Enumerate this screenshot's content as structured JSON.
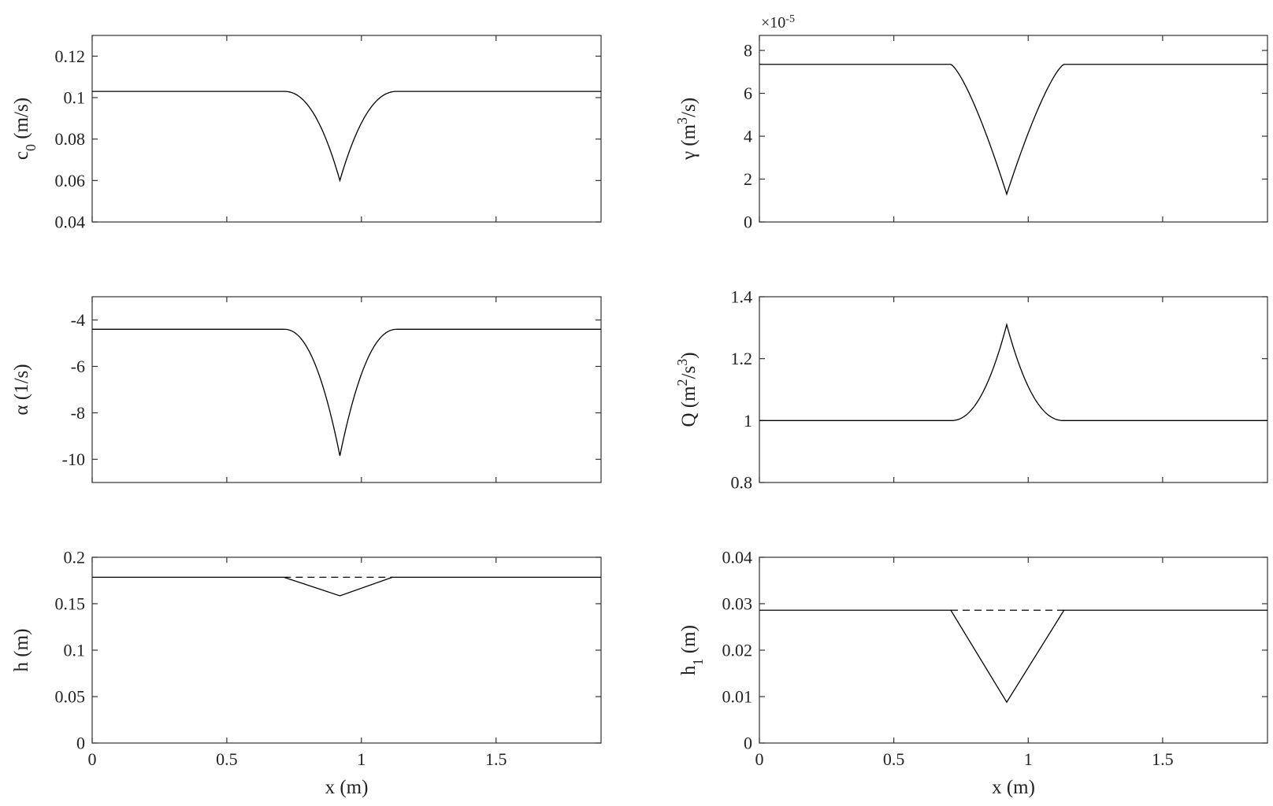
{
  "chart_data": [
    {
      "id": "c0",
      "type": "line",
      "ylabel": "c0 (m/s)",
      "ylabel_parts": [
        {
          "t": "c"
        },
        {
          "t": "0",
          "sub": true
        },
        {
          "t": " (m/s)"
        }
      ],
      "xlabel": "",
      "xlim": [
        0,
        1.89
      ],
      "ylim": [
        0.04,
        0.13
      ],
      "yticks": [
        0.04,
        0.06,
        0.08,
        0.1,
        0.12
      ],
      "ytick_labels": [
        "0.04",
        "0.06",
        "0.08",
        "0.1",
        "0.12"
      ],
      "xticks": [
        0,
        0.5,
        1,
        1.5
      ],
      "xtick_labels": [],
      "y_exponent_label": "",
      "grid": false,
      "series": [
        {
          "style": "solid",
          "shape": "cusp-down",
          "x": [
            0,
            0.712,
            0.92,
            1.133,
            1.89
          ],
          "y": [
            0.103,
            0.103,
            0.06,
            0.103,
            0.103
          ]
        }
      ]
    },
    {
      "id": "gamma",
      "type": "line",
      "ylabel": "γ (m3/s)",
      "ylabel_parts": [
        {
          "t": "γ (m"
        },
        {
          "t": "3",
          "sup": true
        },
        {
          "t": "/s)"
        }
      ],
      "xlabel": "",
      "xlim": [
        0,
        1.89
      ],
      "ylim": [
        0,
        8.7
      ],
      "yticks": [
        0,
        2,
        4,
        6,
        8
      ],
      "ytick_labels": [
        "0",
        "2",
        "4",
        "6",
        "8"
      ],
      "xticks": [
        0,
        0.5,
        1,
        1.5
      ],
      "xtick_labels": [],
      "y_exponent_label": "×10-5",
      "y_exponent_parts": [
        {
          "t": "×10"
        },
        {
          "t": "-5",
          "sup": true
        }
      ],
      "grid": false,
      "series": [
        {
          "style": "solid",
          "shape": "bowl-down",
          "x": [
            0,
            0.712,
            0.92,
            1.133,
            1.89
          ],
          "y": [
            7.35,
            7.35,
            1.3,
            7.35,
            7.35
          ]
        }
      ]
    },
    {
      "id": "alpha",
      "type": "line",
      "ylabel": "α (1/s)",
      "ylabel_parts": [
        {
          "t": "α (1/s)"
        }
      ],
      "xlabel": "",
      "xlim": [
        0,
        1.89
      ],
      "ylim": [
        -11,
        -3
      ],
      "yticks": [
        -10,
        -8,
        -6,
        -4
      ],
      "ytick_labels": [
        "-10",
        "-8",
        "-6",
        "-4"
      ],
      "xticks": [
        0,
        0.5,
        1,
        1.5
      ],
      "xtick_labels": [],
      "y_exponent_label": "",
      "grid": false,
      "series": [
        {
          "style": "solid",
          "shape": "cusp-down",
          "x": [
            0,
            0.712,
            0.92,
            1.133,
            1.89
          ],
          "y": [
            -4.4,
            -4.4,
            -9.85,
            -4.4,
            -4.4
          ]
        }
      ]
    },
    {
      "id": "Q",
      "type": "line",
      "ylabel": "Q (m2/s3)",
      "ylabel_parts": [
        {
          "t": "Q (m"
        },
        {
          "t": "2",
          "sup": true
        },
        {
          "t": "/s"
        },
        {
          "t": "3",
          "sup": true
        },
        {
          "t": ")"
        }
      ],
      "xlabel": "",
      "xlim": [
        0,
        1.89
      ],
      "ylim": [
        0.8,
        1.4
      ],
      "yticks": [
        0.8,
        1,
        1.2,
        1.4
      ],
      "ytick_labels": [
        "0.8",
        "1",
        "1.2",
        "1.4"
      ],
      "xticks": [
        0,
        0.5,
        1,
        1.5
      ],
      "xtick_labels": [],
      "y_exponent_label": "",
      "grid": false,
      "series": [
        {
          "style": "solid",
          "shape": "cusp-up",
          "x": [
            0,
            0.712,
            0.92,
            1.133,
            1.89
          ],
          "y": [
            1.0,
            1.0,
            1.31,
            1.0,
            1.0
          ]
        }
      ]
    },
    {
      "id": "h",
      "type": "line",
      "ylabel": "h (m)",
      "ylabel_parts": [
        {
          "t": "h (m)"
        }
      ],
      "xlabel": "x (m)",
      "xlim": [
        0,
        1.89
      ],
      "ylim": [
        0,
        0.2
      ],
      "yticks": [
        0,
        0.05,
        0.1,
        0.15,
        0.2
      ],
      "ytick_labels": [
        "0",
        "0.05",
        "0.1",
        "0.15",
        "0.2"
      ],
      "xticks": [
        0,
        0.5,
        1,
        1.5
      ],
      "xtick_labels": [
        "0",
        "0.5",
        "1",
        "1.5"
      ],
      "y_exponent_label": "",
      "grid": false,
      "series": [
        {
          "style": "solid",
          "shape": "linear",
          "x": [
            0,
            0.712,
            0.92,
            1.115,
            1.89
          ],
          "y": [
            0.1785,
            0.1785,
            0.1585,
            0.1785,
            0.1785
          ]
        },
        {
          "style": "dashed",
          "shape": "linear",
          "x": [
            0.712,
            1.115
          ],
          "y": [
            0.1785,
            0.1785
          ]
        }
      ]
    },
    {
      "id": "h1",
      "type": "line",
      "ylabel": "h1 (m)",
      "ylabel_parts": [
        {
          "t": "h"
        },
        {
          "t": "1",
          "sub": true
        },
        {
          "t": " (m)"
        }
      ],
      "xlabel": "x (m)",
      "xlim": [
        0,
        1.89
      ],
      "ylim": [
        0,
        0.04
      ],
      "yticks": [
        0,
        0.01,
        0.02,
        0.03,
        0.04
      ],
      "ytick_labels": [
        "0",
        "0.01",
        "0.02",
        "0.03",
        "0.04"
      ],
      "xticks": [
        0,
        0.5,
        1,
        1.5
      ],
      "xtick_labels": [
        "0",
        "0.5",
        "1",
        "1.5"
      ],
      "y_exponent_label": "",
      "grid": false,
      "series": [
        {
          "style": "solid",
          "shape": "linear",
          "x": [
            0,
            0.712,
            0.92,
            1.133,
            1.89
          ],
          "y": [
            0.0286,
            0.0286,
            0.0088,
            0.0286,
            0.0286
          ]
        },
        {
          "style": "dashed",
          "shape": "linear",
          "x": [
            0.712,
            1.133
          ],
          "y": [
            0.0286,
            0.0286
          ]
        }
      ]
    }
  ]
}
